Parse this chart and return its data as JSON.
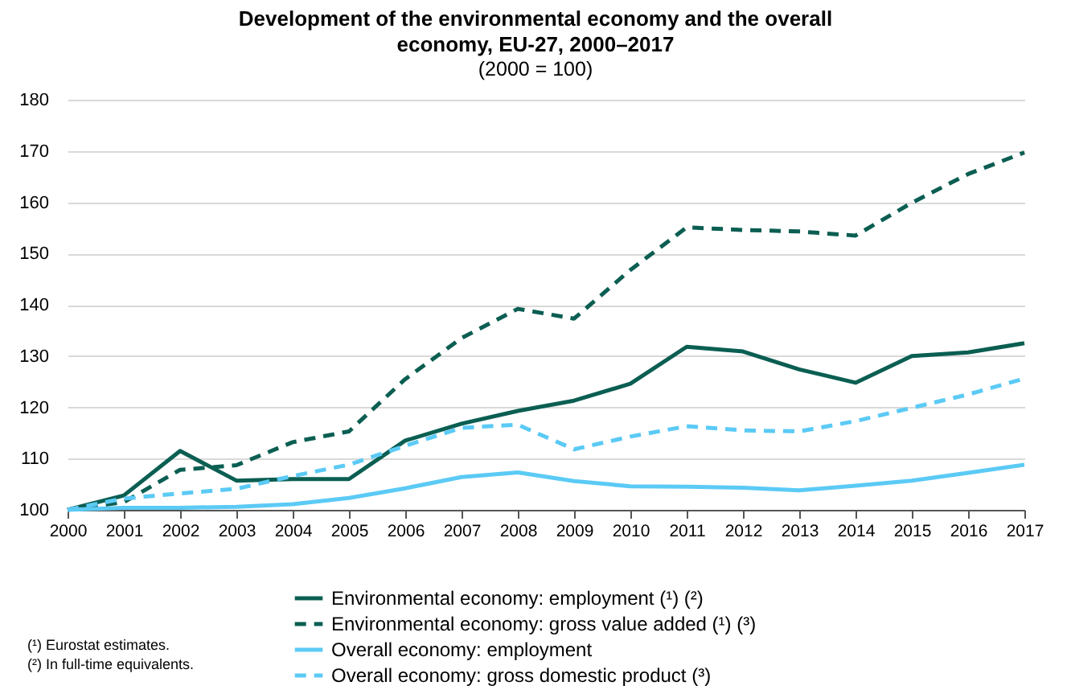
{
  "chart_data": {
    "type": "line",
    "title": "Development of the environmental economy and the overall economy, EU-27, 2000–2017",
    "subtitle": "(2000 = 100)",
    "annotations": [
      "(¹) Eurostat estimates.",
      "(²) In full-time equivalents."
    ],
    "x": [
      2000,
      2001,
      2002,
      2003,
      2004,
      2005,
      2006,
      2007,
      2008,
      2009,
      2010,
      2011,
      2012,
      2013,
      2014,
      2015,
      2016,
      2017
    ],
    "xlim": [
      2000,
      2017
    ],
    "xticks": [
      2000,
      2001,
      2002,
      2003,
      2004,
      2005,
      2006,
      2007,
      2008,
      2009,
      2010,
      2011,
      2012,
      2013,
      2014,
      2015,
      2016,
      2017
    ],
    "ylim": [
      100,
      180
    ],
    "yticks": [
      100,
      110,
      120,
      130,
      140,
      150,
      160,
      170,
      180
    ],
    "grid": "y",
    "legend": "bottom",
    "series": [
      {
        "name": "Environmental economy: employment (¹) (²)",
        "color": "#0b5e52",
        "line_style": "solid",
        "values": [
          100,
          102.8,
          111.5,
          105.7,
          106,
          106,
          113.5,
          116.8,
          119.3,
          121.3,
          124.6,
          131.8,
          130.9,
          127.4,
          124.8,
          130,
          130.7,
          132.5
        ]
      },
      {
        "name": "Environmental economy: gross value added (¹) (³)",
        "color": "#0b5e52",
        "line_style": "dashed",
        "values": [
          100,
          101.5,
          107.8,
          108.7,
          113.2,
          115.3,
          125.5,
          133.5,
          139.2,
          137.3,
          146.8,
          155.1,
          154.6,
          154.3,
          153.5,
          159.9,
          165.5,
          169.7
        ]
      },
      {
        "name": "Overall economy: employment",
        "color": "#5bcaf5",
        "line_style": "solid",
        "values": [
          100,
          100.4,
          100.4,
          100.6,
          101.1,
          102.3,
          104.2,
          106.4,
          107.3,
          105.6,
          104.6,
          104.5,
          104.3,
          103.8,
          104.7,
          105.7,
          107.2,
          108.8
        ]
      },
      {
        "name": "Overall economy: gross domestic product (³)",
        "color": "#5bcaf5",
        "line_style": "dashed",
        "values": [
          100,
          102.2,
          103.2,
          104.1,
          106.6,
          108.8,
          112.5,
          116,
          116.6,
          111.8,
          114.3,
          116.3,
          115.5,
          115.3,
          117.3,
          119.9,
          122.5,
          125.6
        ]
      }
    ]
  }
}
